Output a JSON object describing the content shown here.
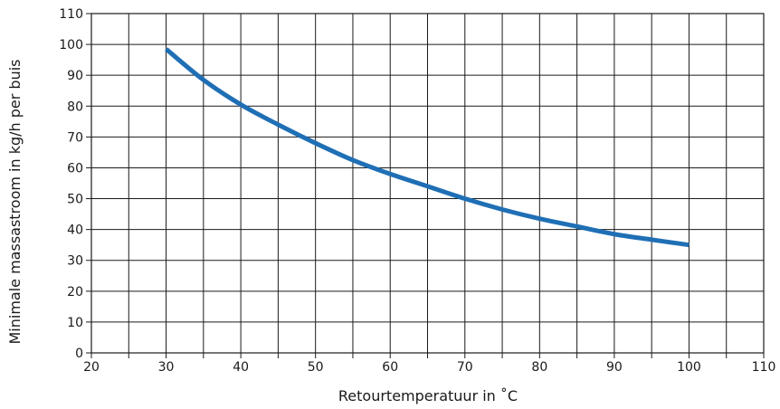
{
  "chart_data": {
    "type": "line",
    "title": "",
    "xlabel": "Retourtemperatuur in ˚C",
    "ylabel": "Minimale massastroom in kg/h per buis",
    "xlim": [
      20,
      110
    ],
    "ylim": [
      0,
      110
    ],
    "x_ticks": [
      "20",
      "30",
      "40",
      "50",
      "60",
      "70",
      "80",
      "90",
      "100",
      "110"
    ],
    "y_ticks": [
      "0",
      "10",
      "20",
      "30",
      "40",
      "50",
      "60",
      "70",
      "80",
      "90",
      "100",
      "110"
    ],
    "grid": true,
    "grid_minor_x": 5,
    "grid_minor_y": 10,
    "line_color": "#1f6fb5",
    "series": [
      {
        "x": [
          30,
          35,
          40,
          45,
          50,
          55,
          60,
          65,
          70,
          75,
          80,
          85,
          90,
          95,
          100
        ],
        "values": [
          98.5,
          88.5,
          80.5,
          74,
          68,
          62.5,
          58,
          54,
          50,
          46.5,
          43.5,
          41,
          38.5,
          36.7,
          35
        ]
      }
    ]
  }
}
